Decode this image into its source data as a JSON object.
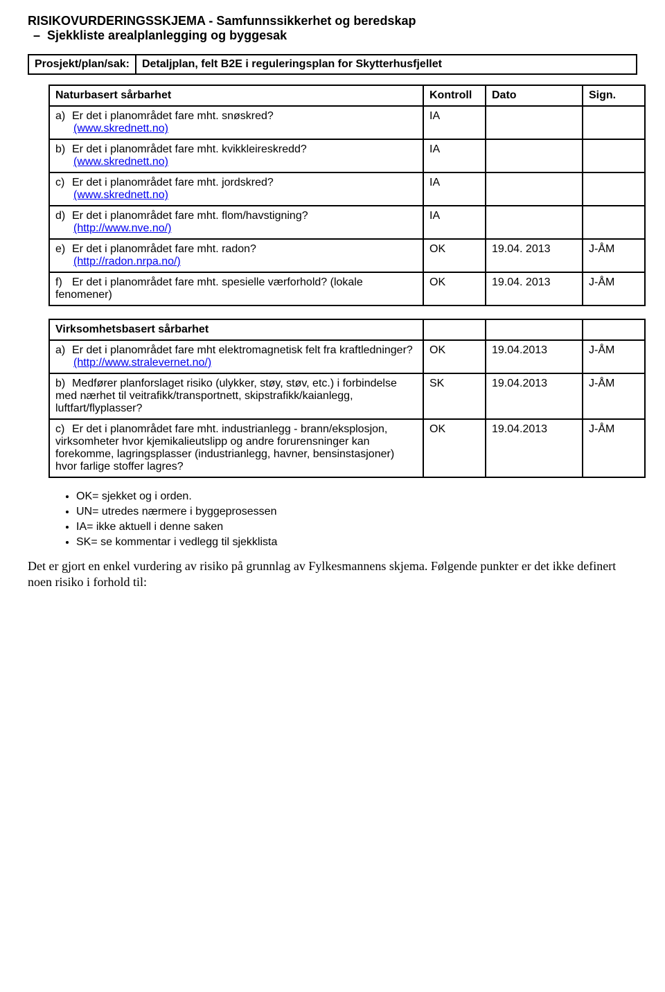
{
  "header": {
    "title": "RISIKOVURDERINGSSKJEMA - Samfunnssikkerhet og beredskap",
    "subtitle": "Sjekkliste arealplanlegging og byggesak"
  },
  "project": {
    "label": "Prosjekt/plan/sak:",
    "value": "Detaljplan, felt B2E i reguleringsplan for Skytterhusfjellet"
  },
  "table1": {
    "header": {
      "title": "Naturbasert sårbarhet",
      "kontroll": "Kontroll",
      "dato": "Dato",
      "sign": "Sign."
    },
    "rows": [
      {
        "letter": "a)",
        "text": "Er det i planområdet fare mht. snøskred?",
        "link": "(www.skrednett.no)",
        "kontroll": "IA",
        "dato": "",
        "sign": ""
      },
      {
        "letter": "b)",
        "text": "Er det i planområdet fare mht. kvikkleireskredd?",
        "link": "(www.skrednett.no)",
        "kontroll": "IA",
        "dato": "",
        "sign": ""
      },
      {
        "letter": "c)",
        "text": "Er det i planområdet fare mht. jordskred?",
        "link": "(www.skrednett.no)",
        "kontroll": "IA",
        "dato": "",
        "sign": ""
      },
      {
        "letter": "d)",
        "text": "Er det i planområdet fare mht. flom/havstigning?",
        "link": "(http://www.nve.no/)",
        "kontroll": "IA",
        "dato": "",
        "sign": ""
      },
      {
        "letter": "e)",
        "text": "Er det i planområdet fare mht. radon?",
        "link": "(http://radon.nrpa.no/)",
        "kontroll": "OK",
        "dato": "19.04. 2013",
        "sign": "J-ÅM"
      },
      {
        "letter": "f)",
        "text": "Er det i planområdet fare mht. spesielle værforhold? (lokale fenomener)",
        "link": "",
        "kontroll": "OK",
        "dato": "19.04. 2013",
        "sign": "J-ÅM"
      }
    ]
  },
  "table2": {
    "header": {
      "title": "Virksomhetsbasert sårbarhet"
    },
    "rows": [
      {
        "letter": "a)",
        "text": "Er det i planområdet fare mht elektromagnetisk felt fra kraftledninger?",
        "link": "(http://www.stralevernet.no/)",
        "kontroll": "OK",
        "dato": "19.04.2013",
        "sign": "J-ÅM"
      },
      {
        "letter": "b)",
        "text": "Medfører planforslaget risiko (ulykker, støy, støv, etc.) i forbindelse med nærhet til veitrafikk/transportnett, skipstrafikk/kaianlegg, luftfart/flyplasser?",
        "link": "",
        "kontroll": "SK",
        "dato": "19.04.2013",
        "sign": "J-ÅM"
      },
      {
        "letter": "c)",
        "text": "Er det i planområdet fare mht. industrianlegg - brann/eksplosjon, virksomheter hvor kjemikalieutslipp og andre forurensninger kan forekomme, lagringsplasser (industrianlegg, havner, bensinstasjoner) hvor farlige stoffer lagres?",
        "link": "",
        "kontroll": "OK",
        "dato": "19.04.2013",
        "sign": "J-ÅM"
      }
    ]
  },
  "legend": {
    "items": [
      "OK= sjekket og i orden.",
      "UN= utredes nærmere i byggeprosessen",
      "IA= ikke aktuell i denne saken",
      "SK= se kommentar i vedlegg til sjekklista"
    ]
  },
  "footer": {
    "text": "Det er gjort en enkel vurdering av risiko på grunnlag av Fylkesmannens skjema. Følgende punkter er det ikke definert noen risiko i forhold til:"
  }
}
